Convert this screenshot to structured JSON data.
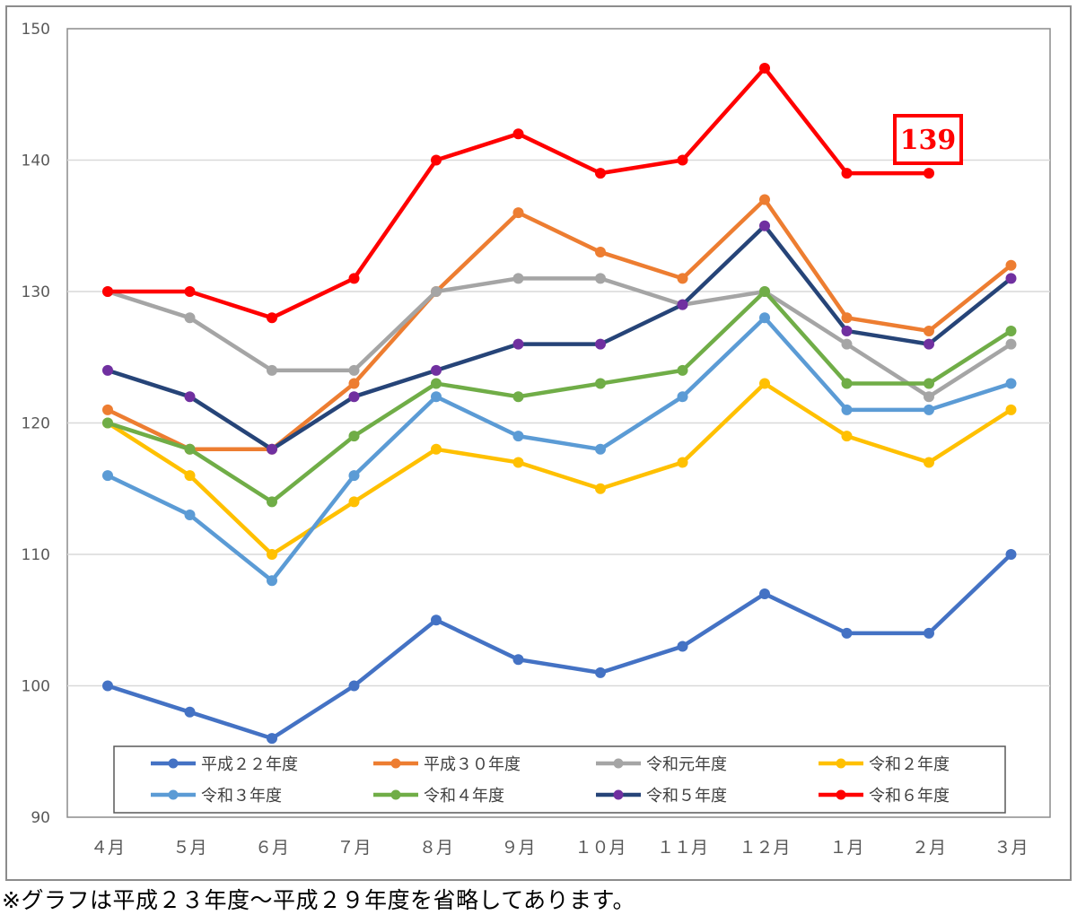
{
  "chart_data": {
    "type": "line",
    "ylim": [
      90,
      150
    ],
    "yticks": [
      90,
      100,
      110,
      120,
      130,
      140,
      150
    ],
    "categories": [
      "４月",
      "５月",
      "６月",
      "７月",
      "８月",
      "９月",
      "１０月",
      "１１月",
      "１２月",
      "１月",
      "２月",
      "３月"
    ],
    "grid": true,
    "legend_position": "bottom",
    "series": [
      {
        "name": "平成２２年度",
        "color": "#4472c4",
        "values": [
          100,
          98,
          96,
          100,
          105,
          102,
          101,
          103,
          107,
          104,
          104,
          110
        ]
      },
      {
        "name": "平成３０年度",
        "color": "#ed7d31",
        "values": [
          121,
          118,
          118,
          123,
          130,
          136,
          133,
          131,
          137,
          128,
          127,
          132
        ]
      },
      {
        "name": "令和元年度",
        "color": "#a5a5a5",
        "values": [
          130,
          128,
          124,
          124,
          130,
          131,
          131,
          129,
          130,
          126,
          122,
          126
        ]
      },
      {
        "name": "令和２年度",
        "color": "#ffc000",
        "values": [
          120,
          116,
          110,
          114,
          118,
          117,
          115,
          117,
          123,
          119,
          117,
          121
        ]
      },
      {
        "name": "令和３年度",
        "color": "#5b9bd5",
        "values": [
          116,
          113,
          108,
          116,
          122,
          119,
          118,
          122,
          128,
          121,
          121,
          123
        ]
      },
      {
        "name": "令和４年度",
        "color": "#70ad47",
        "values": [
          120,
          118,
          114,
          119,
          123,
          122,
          123,
          124,
          130,
          123,
          123,
          127
        ]
      },
      {
        "name": "令和５年度",
        "color": "#264478",
        "marker_color": "#7030a0",
        "values": [
          124,
          122,
          118,
          122,
          124,
          126,
          126,
          129,
          135,
          127,
          126,
          131
        ]
      },
      {
        "name": "令和６年度",
        "color": "#ff0000",
        "values": [
          130,
          130,
          128,
          131,
          140,
          142,
          139,
          140,
          147,
          139,
          139,
          null
        ]
      }
    ],
    "annotation": {
      "text": "139",
      "color": "#ff0000"
    }
  },
  "footnote": "※グラフは平成２３年度～平成２９年度を省略してあります。"
}
